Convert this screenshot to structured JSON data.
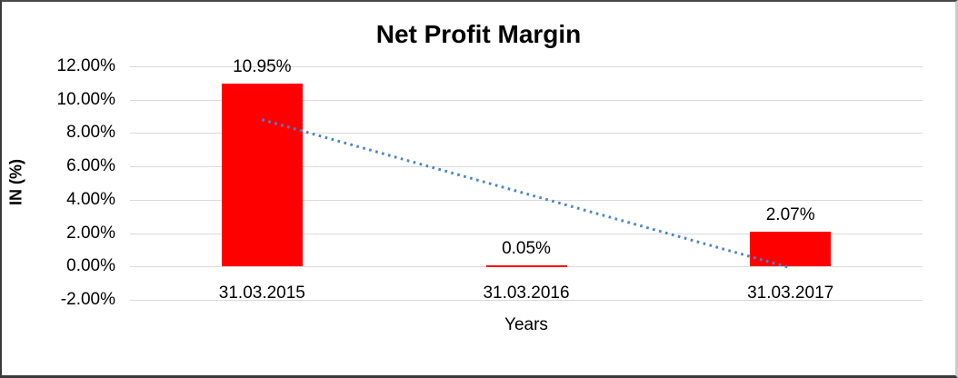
{
  "chart_data": {
    "type": "bar",
    "title": "Net Profit Margin",
    "xlabel": "Years",
    "ylabel": "IN (%)",
    "categories": [
      "31.03.2015",
      "31.03.2016",
      "31.03.2017"
    ],
    "values": [
      10.95,
      0.05,
      2.07
    ],
    "data_labels": [
      "10.95%",
      "0.05%",
      "2.07%"
    ],
    "ylim": [
      -2,
      12
    ],
    "ytick_step": 2,
    "ytick_labels": [
      "12.00%",
      "10.00%",
      "8.00%",
      "6.00%",
      "4.00%",
      "2.00%",
      "0.00%",
      "-2.00%"
    ],
    "grid": true,
    "legend": "none",
    "colors": {
      "bar": "#FF0000",
      "gridline": "#D9D9D9",
      "text": "#000000",
      "trendline": "#4C83C3"
    },
    "trendline": {
      "type": "linear",
      "style": "dotted",
      "start_value": 8.8,
      "end_value": -0.08
    }
  }
}
